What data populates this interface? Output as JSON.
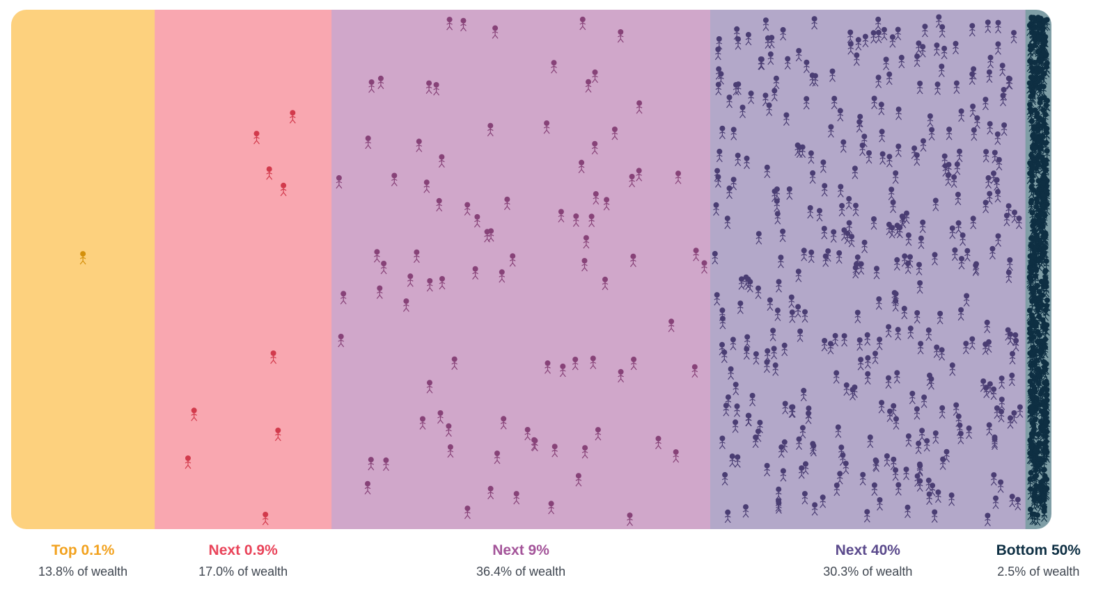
{
  "chart_data": {
    "type": "area",
    "title": "",
    "groups": [
      {
        "label": "Top 0.1%",
        "population_share_pct": 0.1,
        "wealth_share_pct": 13.8,
        "share_text": "13.8% of wealth",
        "band_color": "#fdd17e",
        "figure_color": "#d4900c",
        "label_color": "#f2a21f",
        "figure_count": 1
      },
      {
        "label": "Next 0.9%",
        "population_share_pct": 0.9,
        "wealth_share_pct": 17.0,
        "share_text": "17.0% of wealth",
        "band_color": "#f9a7b0",
        "figure_color": "#d23a4c",
        "label_color": "#e9445a",
        "figure_count": 9
      },
      {
        "label": "Next 9%",
        "population_share_pct": 9,
        "wealth_share_pct": 36.4,
        "share_text": "36.4% of wealth",
        "band_color": "#d0a7ca",
        "figure_color": "#874278",
        "label_color": "#a4559a",
        "figure_count": 90
      },
      {
        "label": "Next 40%",
        "population_share_pct": 40,
        "wealth_share_pct": 30.3,
        "share_text": "30.3% of wealth",
        "band_color": "#b3a8c9",
        "figure_color": "#4a3d73",
        "label_color": "#5b4a8c",
        "figure_count": 400
      },
      {
        "label": "Bottom 50%",
        "population_share_pct": 50,
        "wealth_share_pct": 2.5,
        "share_text": "2.5% of wealth",
        "band_color": "#7f9ea6",
        "figure_color": "#0e2f43",
        "label_color": "#0e2f43",
        "figure_count": 500
      }
    ],
    "figure_icon": "person-icon"
  }
}
